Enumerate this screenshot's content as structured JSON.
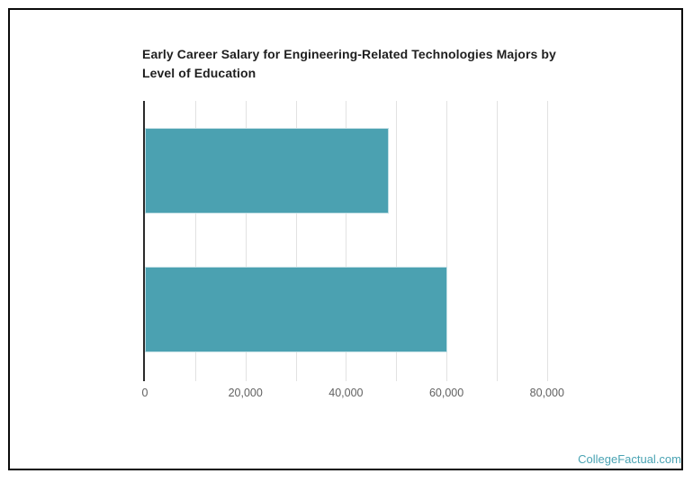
{
  "page": {
    "background_color": "#ffffff",
    "frame_border_color": "#0a0a0a"
  },
  "chart": {
    "title_line1": "Early Career Salary for Engineering-Related Technologies Majors by",
    "title_line2": "Level of Education",
    "watermark": "CollegeFactual.com",
    "watermark_color": "#4aa3b3"
  },
  "chart_data": {
    "type": "bar",
    "orientation": "horizontal",
    "title": "Early Career Salary for Engineering-Related Technologies Majors by Level of Education",
    "xlabel": "",
    "ylabel": "",
    "categories": [
      "",
      ""
    ],
    "values": [
      48600,
      60100
    ],
    "bar_color": "#4ba1b1",
    "xlim": [
      0,
      90000
    ],
    "grid": true,
    "legend": false,
    "axis_line_color": "#2a2a2a",
    "gridline_color": "#e2e2e2",
    "tick_label_color": "#616161",
    "gridline_values": [
      10000,
      20000,
      30000,
      40000,
      50000,
      60000,
      70000,
      80000
    ],
    "x_ticks": [
      {
        "value": 0,
        "label": "0"
      },
      {
        "value": 20000,
        "label": "20,000"
      },
      {
        "value": 40000,
        "label": "40,000"
      },
      {
        "value": 60000,
        "label": "60,000"
      },
      {
        "value": 80000,
        "label": "80,000"
      }
    ]
  }
}
